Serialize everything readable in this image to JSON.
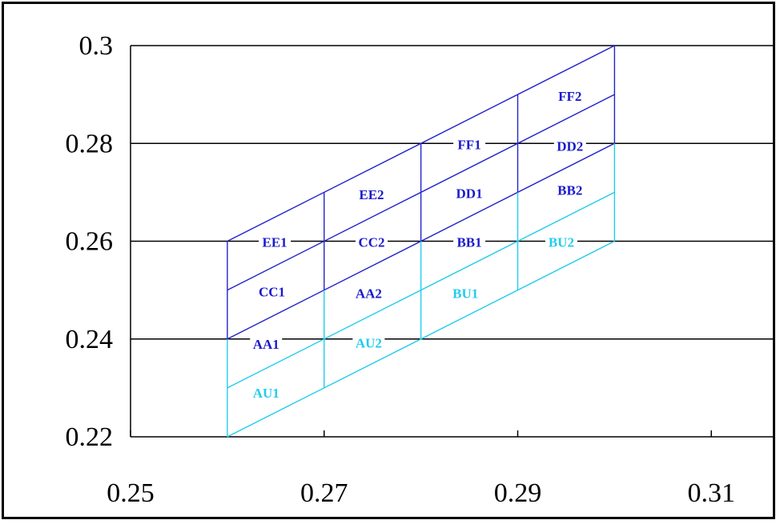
{
  "chart_data": {
    "type": "scatter",
    "title": "",
    "xlabel": "",
    "ylabel": "",
    "xlim": [
      0.25,
      0.33
    ],
    "ylim": [
      0.22,
      0.3
    ],
    "x_ticks": [
      "0.25",
      "0.27",
      "0.29",
      "0.31"
    ],
    "y_ticks": [
      "0.22",
      "0.24",
      "0.26",
      "0.28",
      "0.3"
    ],
    "grid": "horizontal",
    "vertical_lines_x": [
      0.26,
      0.27,
      0.28,
      0.29,
      0.3
    ],
    "parallelogram_boundary_lines": [
      {
        "x": [
          0.26,
          0.3
        ],
        "y": [
          0.22,
          0.26
        ],
        "color": "#22ccee"
      },
      {
        "x": [
          0.26,
          0.3
        ],
        "y": [
          0.23,
          0.27
        ],
        "color": "#22ccee"
      },
      {
        "x": [
          0.26,
          0.3
        ],
        "y": [
          0.24,
          0.28
        ],
        "color": "#2222cc"
      },
      {
        "x": [
          0.26,
          0.3
        ],
        "y": [
          0.25,
          0.29
        ],
        "color": "#2222cc"
      },
      {
        "x": [
          0.26,
          0.3
        ],
        "y": [
          0.26,
          0.3
        ],
        "color": "#2222cc"
      }
    ],
    "cell_labels": [
      {
        "text": "AU1",
        "x": 0.264,
        "y": 0.229,
        "color": "#22ccee"
      },
      {
        "text": "AA1",
        "x": 0.264,
        "y": 0.239,
        "color": "#1a1acc"
      },
      {
        "text": "CC1",
        "x": 0.2646,
        "y": 0.2497,
        "color": "#1a1acc"
      },
      {
        "text": "EE1",
        "x": 0.2649,
        "y": 0.2598,
        "color": "#1a1acc"
      },
      {
        "text": "AU2",
        "x": 0.2746,
        "y": 0.2392,
        "color": "#22ccee"
      },
      {
        "text": "AA2",
        "x": 0.2746,
        "y": 0.2494,
        "color": "#1a1acc"
      },
      {
        "text": "CC2",
        "x": 0.2749,
        "y": 0.2598,
        "color": "#1a1acc"
      },
      {
        "text": "EE2",
        "x": 0.2749,
        "y": 0.2696,
        "color": "#1a1acc"
      },
      {
        "text": "BU1",
        "x": 0.2846,
        "y": 0.2494,
        "color": "#22ccee"
      },
      {
        "text": "BB1",
        "x": 0.285,
        "y": 0.2598,
        "color": "#1a1acc"
      },
      {
        "text": "DD1",
        "x": 0.285,
        "y": 0.2698,
        "color": "#1a1acc"
      },
      {
        "text": "FF1",
        "x": 0.285,
        "y": 0.2798,
        "color": "#1a1acc"
      },
      {
        "text": "BU2",
        "x": 0.2945,
        "y": 0.2598,
        "color": "#22ccee"
      },
      {
        "text": "BB2",
        "x": 0.2954,
        "y": 0.2705,
        "color": "#1a1acc"
      },
      {
        "text": "DD2",
        "x": 0.2954,
        "y": 0.2795,
        "color": "#1a1acc"
      },
      {
        "text": "FF2",
        "x": 0.2954,
        "y": 0.2897,
        "color": "#1a1acc"
      }
    ],
    "colors": {
      "axis": "#000000",
      "grid": "#000000",
      "dark_blue": "#2222cc",
      "light_blue": "#22ccee"
    }
  }
}
